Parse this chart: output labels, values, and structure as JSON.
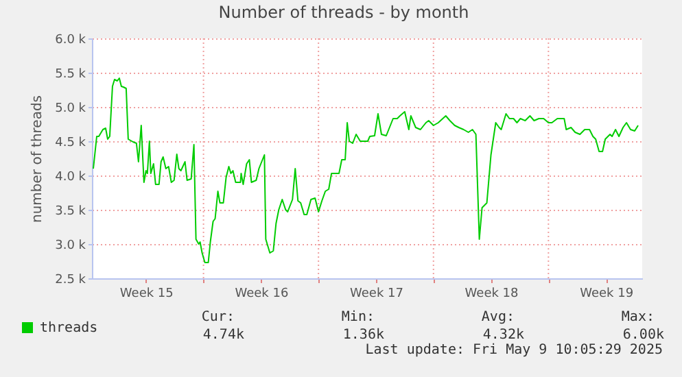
{
  "chart_data": {
    "type": "line",
    "title": "Number of threads - by month",
    "ylabel": "number of threads",
    "x": [
      "2025-04-07T07:00",
      "2025-04-07T12:00",
      "2025-04-07T15:00",
      "2025-04-07T21:00",
      "2025-04-08T01:00",
      "2025-04-08T04:00",
      "2025-04-08T07:00",
      "2025-04-08T11:00",
      "2025-04-08T14:00",
      "2025-04-08T18:00",
      "2025-04-08T21:00",
      "2025-04-09T00:00",
      "2025-04-09T03:00",
      "2025-04-09T07:00",
      "2025-04-09T10:00",
      "2025-04-09T17:00",
      "2025-04-09T22:00",
      "2025-04-10T01:00",
      "2025-04-10T05:00",
      "2025-04-10T09:00",
      "2025-04-10T12:00",
      "2025-04-10T14:00",
      "2025-04-10T17:00",
      "2025-04-10T19:00",
      "2025-04-10T23:00",
      "2025-04-11T02:00",
      "2025-04-11T07:00",
      "2025-04-11T10:00",
      "2025-04-11T13:00",
      "2025-04-11T17:00",
      "2025-04-11T21:00",
      "2025-04-12T01:00",
      "2025-04-12T05:00",
      "2025-04-12T09:00",
      "2025-04-12T12:00",
      "2025-04-12T15:00",
      "2025-04-12T21:00",
      "2025-04-13T00:00",
      "2025-04-13T06:00",
      "2025-04-13T10:00",
      "2025-04-13T13:00",
      "2025-04-13T17:00",
      "2025-04-13T19:00",
      "2025-04-13T22:00",
      "2025-04-14T02:00",
      "2025-04-14T07:00",
      "2025-04-14T10:00",
      "2025-04-14T14:00",
      "2025-04-14T17:00",
      "2025-04-14T21:00",
      "2025-04-15T00:00",
      "2025-04-15T05:00",
      "2025-04-15T09:00",
      "2025-04-15T13:00",
      "2025-04-15T16:00",
      "2025-04-15T19:00",
      "2025-04-15T23:00",
      "2025-04-16T06:00",
      "2025-04-16T07:00",
      "2025-04-16T10:00",
      "2025-04-16T15:00",
      "2025-04-16T19:00",
      "2025-04-16T22:00",
      "2025-04-17T05:00",
      "2025-04-17T09:00",
      "2025-04-17T17:00",
      "2025-04-17T19:00",
      "2025-04-18T01:00",
      "2025-04-18T06:00",
      "2025-04-18T10:00",
      "2025-04-18T14:00",
      "2025-04-18T19:00",
      "2025-04-19T00:00",
      "2025-04-19T03:00",
      "2025-04-19T10:00",
      "2025-04-19T14:00",
      "2025-04-19T18:00",
      "2025-04-19T22:00",
      "2025-04-20T03:00",
      "2025-04-20T07:00",
      "2025-04-20T13:00",
      "2025-04-20T19:00",
      "2025-04-21T00:00",
      "2025-04-21T05:00",
      "2025-04-21T10:00",
      "2025-04-21T15:00",
      "2025-04-21T19:00",
      "2025-04-22T06:00",
      "2025-04-22T10:00",
      "2025-04-22T15:00",
      "2025-04-22T18:00",
      "2025-04-22T21:00",
      "2025-04-23T02:00",
      "2025-04-23T07:00",
      "2025-04-23T13:00",
      "2025-04-23T18:00",
      "2025-04-24T00:00",
      "2025-04-24T03:00",
      "2025-04-24T10:00",
      "2025-04-24T15:00",
      "2025-04-24T20:00",
      "2025-04-25T03:00",
      "2025-04-25T09:00",
      "2025-04-25T13:00",
      "2025-04-25T19:00",
      "2025-04-25T23:00",
      "2025-04-26T06:00",
      "2025-04-26T09:00",
      "2025-04-26T12:00",
      "2025-04-26T15:00",
      "2025-04-26T22:00",
      "2025-04-27T05:00",
      "2025-04-27T13:00",
      "2025-04-27T17:00",
      "2025-04-28T00:00",
      "2025-04-28T07:00",
      "2025-04-28T18:00",
      "2025-04-29T00:00",
      "2025-04-29T07:00",
      "2025-04-29T13:00",
      "2025-04-29T20:00",
      "2025-04-30T03:00",
      "2025-04-30T09:00",
      "2025-04-30T14:00",
      "2025-04-30T19:00",
      "2025-04-30T23:00",
      "2025-05-01T06:00",
      "2025-05-01T12:00",
      "2025-05-01T19:00",
      "2025-05-02T00:00",
      "2025-05-02T03:00",
      "2025-05-02T10:00",
      "2025-05-02T15:00",
      "2025-05-02T21:00",
      "2025-05-03T02:00",
      "2025-05-03T07:00",
      "2025-05-03T14:00",
      "2025-05-03T21:00",
      "2025-05-04T03:00",
      "2025-05-04T10:00",
      "2025-05-04T17:00",
      "2025-05-05T00:00",
      "2025-05-05T05:00",
      "2025-05-05T13:00",
      "2025-05-05T23:00",
      "2025-05-06T02:00",
      "2025-05-06T09:00",
      "2025-05-06T15:00",
      "2025-05-06T22:00",
      "2025-05-07T05:00",
      "2025-05-07T12:00",
      "2025-05-07T17:00",
      "2025-05-07T21:00",
      "2025-05-08T02:00",
      "2025-05-08T07:00",
      "2025-05-08T11:00",
      "2025-05-08T18:00",
      "2025-05-08T21:00",
      "2025-05-09T02:00",
      "2025-05-09T07:00",
      "2025-05-09T13:00",
      "2025-05-09T18:00",
      "2025-05-10T00:00",
      "2025-05-10T06:00",
      "2025-05-10T11:00"
    ],
    "series": [
      {
        "name": "threads",
        "color": "#00cc00",
        "values": [
          4100,
          4570,
          4570,
          4670,
          4690,
          4530,
          4570,
          5300,
          5400,
          5380,
          5420,
          5300,
          5290,
          5270,
          4530,
          4490,
          4470,
          4200,
          4730,
          3900,
          4070,
          4030,
          4500,
          4030,
          4170,
          3870,
          3870,
          4200,
          4270,
          4100,
          4130,
          3900,
          3930,
          4310,
          4100,
          4070,
          4200,
          3930,
          3950,
          4450,
          3070,
          3000,
          3030,
          2870,
          2730,
          2730,
          3030,
          3330,
          3370,
          3770,
          3600,
          3600,
          3970,
          4130,
          4030,
          4070,
          3900,
          3900,
          4030,
          3870,
          4170,
          4230,
          3900,
          3930,
          4100,
          4300,
          3070,
          2870,
          2900,
          3300,
          3500,
          3650,
          3500,
          3470,
          3650,
          4100,
          3630,
          3600,
          3430,
          3430,
          3650,
          3670,
          3470,
          3630,
          3770,
          3800,
          4030,
          4030,
          4230,
          4230,
          4770,
          4500,
          4470,
          4600,
          4500,
          4500,
          4500,
          4570,
          4580,
          4900,
          4600,
          4580,
          4730,
          4830,
          4830,
          4870,
          4930,
          4800,
          4670,
          4870,
          4700,
          4670,
          4770,
          4800,
          4730,
          4770,
          4870,
          4800,
          4730,
          4700,
          4670,
          4630,
          4670,
          4600,
          3070,
          3530,
          3600,
          4300,
          4770,
          4700,
          4670,
          4900,
          4830,
          4830,
          4770,
          4830,
          4800,
          4870,
          4800,
          4830,
          4830,
          4770,
          4770,
          4830,
          4830,
          4670,
          4700,
          4630,
          4600,
          4670,
          4670,
          4570,
          4530,
          4350,
          4350,
          4530,
          4600,
          4570,
          4670,
          4570,
          4700,
          4770,
          4670,
          4650,
          4730
        ]
      }
    ],
    "xlim": [
      "2025-04-07T05:00",
      "2025-05-10T17:00"
    ],
    "xticks": [
      {
        "value": "2025-04-10T12:00",
        "label": "Week 15"
      },
      {
        "value": "2025-04-14T00:00",
        "label": null
      },
      {
        "value": "2025-04-17T12:00",
        "label": "Week 16"
      },
      {
        "value": "2025-04-21T00:00",
        "label": null
      },
      {
        "value": "2025-04-24T12:00",
        "label": "Week 17"
      },
      {
        "value": "2025-04-28T00:00",
        "label": null
      },
      {
        "value": "2025-05-01T12:00",
        "label": "Week 18"
      },
      {
        "value": "2025-05-05T00:00",
        "label": null
      },
      {
        "value": "2025-05-08T12:00",
        "label": "Week 19"
      }
    ],
    "ylim": [
      2500,
      6000
    ],
    "yticks": [
      {
        "value": 2500,
        "label": "2.5 k"
      },
      {
        "value": 3000,
        "label": "3.0 k"
      },
      {
        "value": 3500,
        "label": "3.5 k"
      },
      {
        "value": 4000,
        "label": "4.0 k"
      },
      {
        "value": 4500,
        "label": "4.5 k"
      },
      {
        "value": 5000,
        "label": "5.0 k"
      },
      {
        "value": 5500,
        "label": "5.5 k"
      },
      {
        "value": 6000,
        "label": "6.0 k"
      }
    ],
    "grid": true,
    "legend": "bottom left",
    "annotations": [
      "Cur:",
      "4.74k",
      "Min:",
      "1.36k",
      "Avg:",
      "4.32k",
      "Max:",
      "6.00k",
      "Last update: Fri May  9 10:05:29 2025"
    ]
  }
}
